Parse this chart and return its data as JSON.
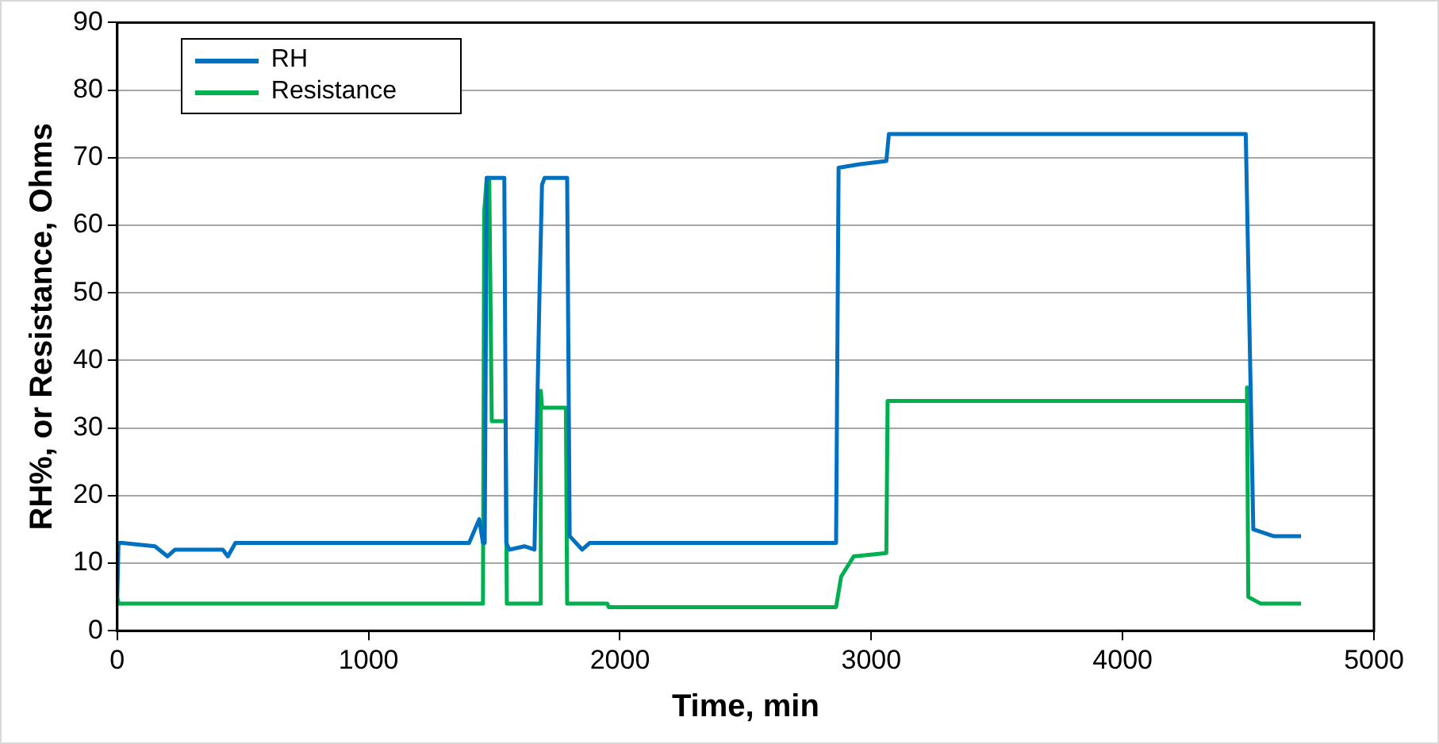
{
  "chart_data": {
    "type": "line",
    "xlabel": "Time, min",
    "ylabel": "RH%, or Resistance, Ohms",
    "xlim": [
      0,
      5000
    ],
    "xticks": [
      0,
      1000,
      2000,
      3000,
      4000,
      5000
    ],
    "ylim": [
      0,
      90
    ],
    "yticks": [
      0,
      10,
      20,
      30,
      40,
      50,
      60,
      70,
      80,
      90
    ],
    "grid": "y",
    "legend": "top left",
    "marker": "none",
    "line_style": "solid",
    "series": [
      {
        "name": "RH",
        "color": "#0070c0",
        "x": [
          0,
          5,
          20,
          150,
          200,
          230,
          300,
          420,
          440,
          470,
          700,
          1400,
          1440,
          1455,
          1462,
          1470,
          1540,
          1548,
          1560,
          1620,
          1660,
          1680,
          1690,
          1700,
          1790,
          1800,
          1850,
          1880,
          2860,
          2870,
          2950,
          3060,
          3070,
          4490,
          4500,
          4520,
          4600,
          4710
        ],
        "values": [
          5,
          13,
          13,
          12.5,
          11,
          12,
          12,
          12,
          11,
          13,
          13,
          13,
          16.5,
          13,
          13,
          67,
          67,
          13,
          12,
          12.5,
          12,
          50,
          66,
          67,
          67,
          14,
          12,
          13,
          13,
          68.5,
          69,
          69.5,
          73.5,
          73.5,
          54,
          15,
          14,
          14
        ]
      },
      {
        "name": "Resistance",
        "color": "#00b050",
        "x": [
          0,
          5,
          1455,
          1460,
          1470,
          1480,
          1490,
          1545,
          1550,
          1680,
          1685,
          1690,
          1700,
          1785,
          1790,
          1950,
          1955,
          2860,
          2880,
          2930,
          3060,
          3065,
          4490,
          4495,
          4500,
          4550,
          4710
        ],
        "values": [
          5,
          4,
          4,
          62,
          67,
          67,
          31,
          31,
          4,
          4,
          35.5,
          33,
          33,
          33,
          4,
          4,
          3.5,
          3.5,
          8,
          11,
          11.5,
          34,
          34,
          36,
          5,
          4,
          4
        ]
      }
    ]
  }
}
